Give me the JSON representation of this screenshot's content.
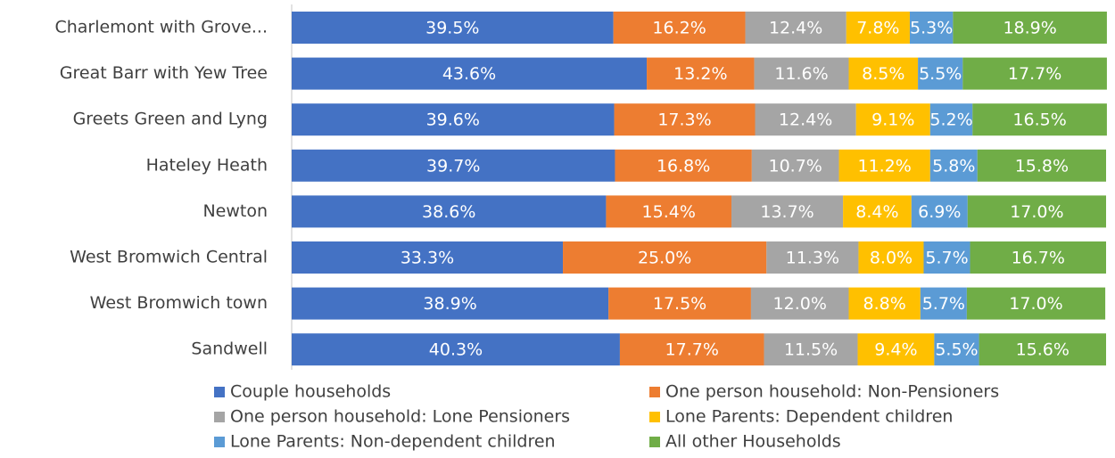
{
  "chart_data": {
    "type": "stacked_bar_horizontal",
    "categories": [
      "Charlemont with Grove...",
      "Great Barr with Yew Tree",
      "Greets Green and Lyng",
      "Hateley Heath",
      "Newton",
      "West Bromwich Central",
      "West Bromwich town",
      "Sandwell"
    ],
    "xlim": [
      0,
      100
    ],
    "series": [
      {
        "name": "Couple households",
        "color": "#4472c4",
        "values": [
          39.5,
          43.6,
          39.6,
          39.7,
          38.6,
          33.3,
          38.9,
          40.3
        ],
        "value_labels": [
          "39.5%",
          "43.6%",
          "39.6%",
          "39.7%",
          "38.6%",
          "33.3%",
          "38.9%",
          "40.3%"
        ]
      },
      {
        "name": "One person household: Non-Pensioners",
        "color": "#ed7d31",
        "values": [
          16.2,
          13.2,
          17.3,
          16.8,
          15.4,
          25.0,
          17.5,
          17.7
        ],
        "value_labels": [
          "16.2%",
          "13.2%",
          "17.3%",
          "16.8%",
          "15.4%",
          "25.0%",
          "17.5%",
          "17.7%"
        ]
      },
      {
        "name": "One person household: Lone Pensioners",
        "color": "#a5a5a5",
        "values": [
          12.4,
          11.6,
          12.4,
          10.7,
          13.7,
          11.3,
          12.0,
          11.5
        ],
        "value_labels": [
          "12.4%",
          "11.6%",
          "12.4%",
          "10.7%",
          "13.7%",
          "11.3%",
          "12.0%",
          "11.5%"
        ]
      },
      {
        "name": "Lone Parents: Dependent children",
        "color": "#ffc000",
        "values": [
          7.8,
          8.5,
          9.1,
          11.2,
          8.4,
          8.0,
          8.8,
          9.4
        ],
        "value_labels": [
          "7.8%",
          "8.5%",
          "9.1%",
          "11.2%",
          "8.4%",
          "8.0%",
          "8.8%",
          "9.4%"
        ]
      },
      {
        "name": "Lone Parents: Non-dependent children",
        "color": "#5b9bd5",
        "values": [
          5.3,
          5.5,
          5.2,
          5.8,
          6.9,
          5.7,
          5.7,
          5.5
        ],
        "value_labels": [
          "5.3%",
          "5.5%",
          "5.2%",
          "5.8%",
          "6.9%",
          "5.7%",
          "5.7%",
          "5.5%"
        ]
      },
      {
        "name": "All other Households",
        "color": "#70ad47",
        "values": [
          18.9,
          17.7,
          16.5,
          15.8,
          17.0,
          16.7,
          17.0,
          15.6
        ],
        "value_labels": [
          "18.9%",
          "17.7%",
          "16.5%",
          "15.8%",
          "17.0%",
          "16.7%",
          "17.0%",
          "15.6%"
        ]
      }
    ]
  }
}
